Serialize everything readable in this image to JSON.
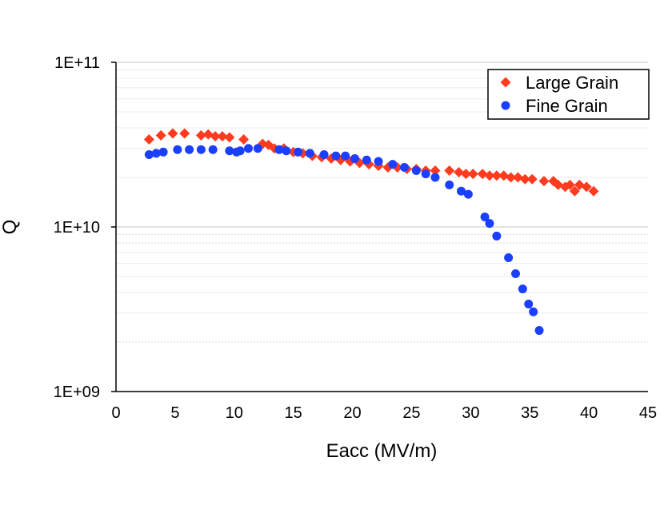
{
  "chart_data": {
    "type": "scatter",
    "title": "",
    "xlabel": "Eacc (MV/m)",
    "ylabel": "Q",
    "xlim": [
      0,
      45
    ],
    "ylim": [
      1000000000.0,
      100000000000.0
    ],
    "yscale": "log",
    "x_ticks": [
      0,
      5,
      10,
      15,
      20,
      25,
      30,
      35,
      40,
      45
    ],
    "x_tick_labels": [
      "0",
      "5",
      "10",
      "15",
      "20",
      "25",
      "30",
      "35",
      "40",
      "45"
    ],
    "y_ticks": [
      1000000000.0,
      10000000000.0,
      100000000000.0
    ],
    "y_tick_labels": [
      "1E+09",
      "1E+10",
      "1E+11"
    ],
    "grid": "major and minor horizontal (log)",
    "legend_position": "top-right",
    "series": [
      {
        "name": "Large Grain",
        "color": "#ff3b1f",
        "marker": "diamond",
        "points": [
          [
            2.8,
            34000000000.0
          ],
          [
            3.8,
            36000000000.0
          ],
          [
            4.8,
            37000000000.0
          ],
          [
            5.8,
            37000000000.0
          ],
          [
            7.2,
            36000000000.0
          ],
          [
            7.8,
            36500000000.0
          ],
          [
            8.4,
            35500000000.0
          ],
          [
            9.0,
            35500000000.0
          ],
          [
            9.6,
            35000000000.0
          ],
          [
            10.8,
            34000000000.0
          ],
          [
            12.4,
            32000000000.0
          ],
          [
            12.9,
            31500000000.0
          ],
          [
            13.4,
            30000000000.0
          ],
          [
            14.2,
            30000000000.0
          ],
          [
            15.0,
            28500000000.0
          ],
          [
            15.8,
            28000000000.0
          ],
          [
            16.6,
            27000000000.0
          ],
          [
            17.4,
            26500000000.0
          ],
          [
            18.2,
            26000000000.0
          ],
          [
            19.0,
            25500000000.0
          ],
          [
            19.8,
            25000000000.0
          ],
          [
            20.6,
            24500000000.0
          ],
          [
            21.4,
            24000000000.0
          ],
          [
            22.2,
            23500000000.0
          ],
          [
            23.0,
            23000000000.0
          ],
          [
            23.8,
            23000000000.0
          ],
          [
            24.6,
            22500000000.0
          ],
          [
            25.4,
            22500000000.0
          ],
          [
            26.2,
            22000000000.0
          ],
          [
            27.0,
            22000000000.0
          ],
          [
            28.2,
            22000000000.0
          ],
          [
            29.0,
            21500000000.0
          ],
          [
            29.6,
            21000000000.0
          ],
          [
            30.2,
            21000000000.0
          ],
          [
            31.0,
            21000000000.0
          ],
          [
            31.6,
            20500000000.0
          ],
          [
            32.2,
            20500000000.0
          ],
          [
            32.8,
            20500000000.0
          ],
          [
            33.4,
            20000000000.0
          ],
          [
            34.0,
            20000000000.0
          ],
          [
            34.6,
            19500000000.0
          ],
          [
            35.2,
            19500000000.0
          ],
          [
            36.2,
            19000000000.0
          ],
          [
            37.0,
            19000000000.0
          ],
          [
            37.4,
            18000000000.0
          ],
          [
            38.0,
            17500000000.0
          ],
          [
            38.4,
            18000000000.0
          ],
          [
            38.8,
            16500000000.0
          ],
          [
            39.2,
            18000000000.0
          ],
          [
            39.8,
            17500000000.0
          ],
          [
            40.4,
            16500000000.0
          ]
        ]
      },
      {
        "name": "Fine Grain",
        "color": "#1a3fff",
        "marker": "circle",
        "points": [
          [
            2.8,
            27500000000.0
          ],
          [
            3.4,
            28000000000.0
          ],
          [
            4.0,
            28500000000.0
          ],
          [
            5.2,
            29500000000.0
          ],
          [
            6.2,
            29500000000.0
          ],
          [
            7.2,
            29500000000.0
          ],
          [
            8.2,
            29500000000.0
          ],
          [
            9.6,
            29000000000.0
          ],
          [
            10.2,
            28500000000.0
          ],
          [
            10.5,
            29000000000.0
          ],
          [
            11.2,
            30000000000.0
          ],
          [
            12.0,
            30000000000.0
          ],
          [
            13.8,
            29500000000.0
          ],
          [
            14.4,
            29000000000.0
          ],
          [
            15.4,
            28500000000.0
          ],
          [
            16.4,
            28000000000.0
          ],
          [
            17.6,
            27500000000.0
          ],
          [
            18.6,
            27000000000.0
          ],
          [
            19.4,
            27000000000.0
          ],
          [
            20.2,
            26000000000.0
          ],
          [
            21.2,
            25500000000.0
          ],
          [
            22.2,
            25000000000.0
          ],
          [
            23.4,
            24000000000.0
          ],
          [
            24.4,
            23000000000.0
          ],
          [
            25.4,
            22000000000.0
          ],
          [
            26.2,
            21000000000.0
          ],
          [
            27.0,
            20000000000.0
          ],
          [
            28.2,
            18000000000.0
          ],
          [
            29.2,
            16500000000.0
          ],
          [
            29.8,
            15800000000.0
          ],
          [
            31.2,
            11500000000.0
          ],
          [
            31.6,
            10500000000.0
          ],
          [
            32.2,
            8800000000.0
          ],
          [
            33.2,
            6500000000.0
          ],
          [
            33.8,
            5200000000.0
          ],
          [
            34.4,
            4200000000.0
          ],
          [
            34.9,
            3400000000.0
          ],
          [
            35.3,
            3050000000.0
          ],
          [
            35.8,
            2350000000.0
          ]
        ]
      }
    ]
  }
}
